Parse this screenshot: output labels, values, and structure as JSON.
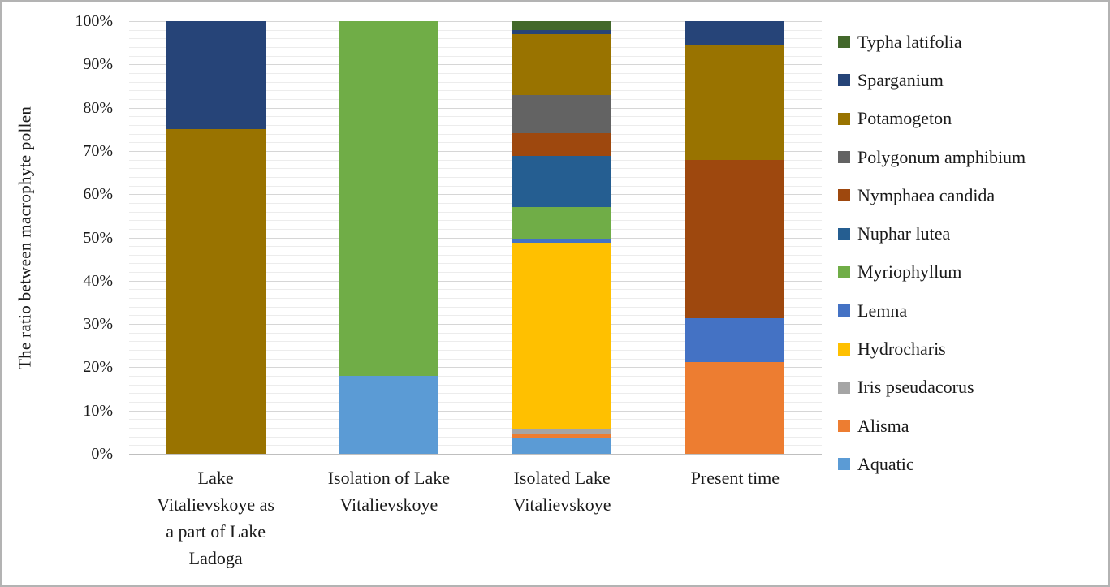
{
  "frame": {
    "background": "#FFFFFF",
    "border_color": "#B3B3B3"
  },
  "chart_data": {
    "type": "bar",
    "stacked": true,
    "units": "percent",
    "title": "",
    "xlabel": "",
    "ylabel": "The ratio between macrophyte pollen",
    "ylim": [
      0,
      100
    ],
    "ytick_step": 10,
    "ytick_labels": [
      "100%",
      "90%",
      "80%",
      "70%",
      "60%",
      "50%",
      "40%",
      "30%",
      "20%",
      "10%",
      "0%"
    ],
    "minor_grid_step": 2,
    "grid": {
      "major_color": "#D6D6D6",
      "minor_color": "#ECECEC",
      "on": true
    },
    "legend_position": "right",
    "categories": [
      "Lake Vitalievskoye as a part of Lake Ladoga",
      "Isolation of Lake Vitalievskoye",
      "Isolated Lake Vitalievskoye",
      "Present time"
    ],
    "category_label_lines": [
      [
        "Lake",
        "Vitalievskoye as",
        "a part of Lake",
        "Ladoga"
      ],
      [
        "Isolation of Lake",
        "Vitalievskoye"
      ],
      [
        "Isolated Lake",
        "Vitalievskoye"
      ],
      [
        "Present time"
      ]
    ],
    "series": [
      {
        "name": "Aquatic",
        "color": "#5B9BD5",
        "values": [
          0,
          18,
          3.6,
          0
        ]
      },
      {
        "name": "Alisma",
        "color": "#ED7D31",
        "values": [
          0,
          0,
          1.0,
          21.2
        ]
      },
      {
        "name": "Iris pseudacorus",
        "color": "#A5A5A5",
        "values": [
          0,
          0,
          1.2,
          0
        ]
      },
      {
        "name": "Hydrocharis",
        "color": "#FFC000",
        "values": [
          0,
          0,
          42.9,
          0
        ]
      },
      {
        "name": "Lemna",
        "color": "#4472C4",
        "values": [
          0,
          0,
          1.1,
          10.2
        ]
      },
      {
        "name": "Myriophyllum",
        "color": "#70AD47",
        "values": [
          0,
          82,
          7.3,
          0
        ]
      },
      {
        "name": "Nuphar lutea",
        "color": "#255E91",
        "values": [
          0,
          0,
          11.7,
          0
        ]
      },
      {
        "name": "Nymphaea candida",
        "color": "#9E480E",
        "values": [
          0,
          0,
          5.3,
          36.6
        ]
      },
      {
        "name": "Polygonum amphibium",
        "color": "#636363",
        "values": [
          0,
          0,
          8.9,
          0
        ]
      },
      {
        "name": "Potamogeton",
        "color": "#997300",
        "values": [
          75,
          0,
          14.0,
          26.4
        ]
      },
      {
        "name": "Sparganium",
        "color": "#264478",
        "values": [
          25,
          0,
          1.0,
          5.6
        ]
      },
      {
        "name": "Typha latifolia",
        "color": "#43682B",
        "values": [
          0,
          0,
          2.0,
          0
        ]
      }
    ],
    "legend_order_top_to_bottom": [
      "Typha latifolia",
      "Sparganium",
      "Potamogeton",
      "Polygonum amphibium",
      "Nymphaea candida",
      "Nuphar lutea",
      "Myriophyllum",
      "Lemna",
      "Hydrocharis",
      "Iris pseudacorus",
      "Alisma",
      "Aquatic"
    ]
  }
}
